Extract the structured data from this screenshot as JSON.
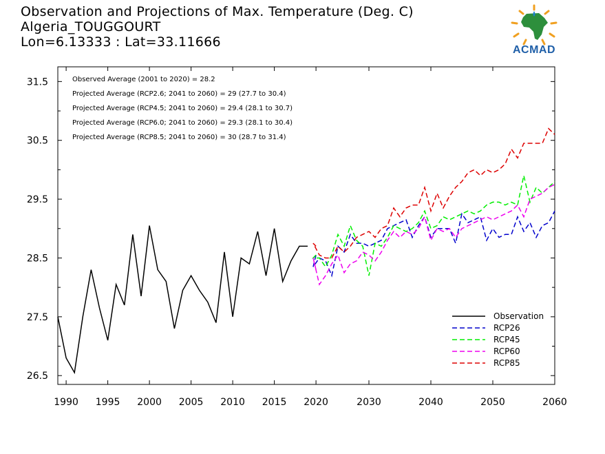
{
  "header": {
    "title_line1": "Observation and Projections of Max. Temperature (Deg. C)",
    "title_line2": "Algeria_TOUGGOURT",
    "title_line3": "Lon=6.13333 : Lat=33.11666"
  },
  "logo": {
    "text": "ACMAD",
    "icon": "africa-map-logo-icon"
  },
  "colors": {
    "observation": "#000000",
    "rcp26": "#0000cc",
    "rcp45": "#00ee00",
    "rcp60": "#ee00ee",
    "rcp85": "#dd0000"
  },
  "chart_data": {
    "type": "line",
    "xlim": [
      1989,
      2060
    ],
    "ylim": [
      26.35,
      31.75
    ],
    "x_ticks": [
      1990,
      1995,
      2000,
      2005,
      2010,
      2015,
      2020,
      2030,
      2040,
      2050,
      2060
    ],
    "x_tick_labels": [
      "1990",
      "1995",
      "2000",
      "2005",
      "2010",
      "2015",
      "2020",
      "2030",
      "2040",
      "2050",
      "2060"
    ],
    "y_ticks": [
      26.5,
      27.5,
      28.5,
      29.5,
      30.5,
      31.5
    ],
    "y_tick_labels": [
      "26.5",
      "27.5",
      "28.5",
      "29.5",
      "30.5",
      "31.5"
    ],
    "annotations": [
      "Observed Average (2001 to 2020) = 28.2",
      "Projected Average (RCP2.6; 2041 to 2060) = 29 (27.7 to 30.4)",
      "Projected Average (RCP4.5; 2041 to 2060) = 29.4 (28.1 to 30.7)",
      "Projected Average (RCP6.0; 2041 to 2060) = 29.3 (28.1 to 30.4)",
      "Projected Average (RCP8.5; 2041 to 2060) = 30 (28.7 to 31.4)"
    ],
    "legend": {
      "position": "bottom-right",
      "entries": [
        "Observation",
        "RCP26",
        "RCP45",
        "RCP60",
        "RCP85"
      ]
    },
    "series": [
      {
        "name": "Observation",
        "style": "solid",
        "x": [
          1989,
          1990,
          1991,
          1992,
          1993,
          1994,
          1995,
          1996,
          1997,
          1998,
          1999,
          2000,
          2001,
          2002,
          2003,
          2004,
          2005,
          2006,
          2007,
          2008,
          2009,
          2010,
          2011,
          2012,
          2013,
          2014,
          2015,
          2016,
          2017,
          2018,
          2019
        ],
        "y": [
          27.5,
          26.8,
          26.55,
          27.5,
          28.3,
          27.65,
          27.1,
          28.05,
          27.7,
          28.9,
          27.85,
          29.05,
          28.3,
          28.1,
          27.3,
          27.95,
          28.2,
          27.95,
          27.75,
          27.4,
          28.6,
          27.5,
          28.5,
          28.4,
          28.95,
          28.2,
          29.0,
          28.1,
          28.45,
          28.7,
          28.7
        ]
      },
      {
        "name": "RCP26",
        "style": "dashed",
        "x": [
          2020,
          2021,
          2022,
          2023,
          2024,
          2025,
          2026,
          2027,
          2028,
          2029,
          2030,
          2031,
          2032,
          2033,
          2034,
          2035,
          2036,
          2037,
          2038,
          2039,
          2040,
          2041,
          2042,
          2043,
          2044,
          2045,
          2046,
          2047,
          2048,
          2049,
          2050,
          2051,
          2052,
          2053,
          2054,
          2055,
          2056,
          2057,
          2058,
          2059,
          2060
        ],
        "y": [
          28.55,
          28.35,
          28.5,
          28.45,
          28.2,
          28.7,
          28.6,
          28.9,
          28.75,
          28.75,
          28.7,
          28.75,
          28.8,
          29.0,
          29.05,
          29.1,
          29.15,
          28.85,
          29.05,
          29.2,
          28.85,
          29.0,
          29.0,
          29.0,
          28.75,
          29.25,
          29.1,
          29.15,
          29.2,
          28.8,
          29.0,
          28.85,
          28.9,
          28.9,
          29.2,
          28.95,
          29.1,
          28.85,
          29.05,
          29.1,
          29.3
        ]
      },
      {
        "name": "RCP45",
        "style": "dashed",
        "x": [
          2020,
          2021,
          2022,
          2023,
          2024,
          2025,
          2026,
          2027,
          2028,
          2029,
          2030,
          2031,
          2032,
          2033,
          2034,
          2035,
          2036,
          2037,
          2038,
          2039,
          2040,
          2041,
          2042,
          2043,
          2044,
          2045,
          2046,
          2047,
          2048,
          2049,
          2050,
          2051,
          2052,
          2053,
          2054,
          2055,
          2056,
          2057,
          2058,
          2059,
          2060
        ],
        "y": [
          28.55,
          28.5,
          28.5,
          28.35,
          28.55,
          28.9,
          28.7,
          29.05,
          28.8,
          28.7,
          28.2,
          28.75,
          28.7,
          28.85,
          29.05,
          29.0,
          28.95,
          29.0,
          29.1,
          29.3,
          29.0,
          29.05,
          29.2,
          29.15,
          29.2,
          29.25,
          29.3,
          29.25,
          29.3,
          29.4,
          29.45,
          29.45,
          29.4,
          29.45,
          29.4,
          29.9,
          29.45,
          29.7,
          29.6,
          29.7,
          29.8
        ]
      },
      {
        "name": "RCP60",
        "style": "dashed",
        "x": [
          2020,
          2021,
          2022,
          2023,
          2024,
          2025,
          2026,
          2027,
          2028,
          2029,
          2030,
          2031,
          2032,
          2033,
          2034,
          2035,
          2036,
          2037,
          2038,
          2039,
          2040,
          2041,
          2042,
          2043,
          2044,
          2045,
          2046,
          2047,
          2048,
          2049,
          2050,
          2051,
          2052,
          2053,
          2054,
          2055,
          2056,
          2057,
          2058,
          2059,
          2060
        ],
        "y": [
          28.3,
          28.5,
          28.05,
          28.2,
          28.4,
          28.55,
          28.25,
          28.4,
          28.45,
          28.6,
          28.55,
          28.45,
          28.6,
          28.8,
          28.95,
          28.85,
          28.95,
          28.9,
          29.0,
          29.2,
          28.8,
          29.0,
          28.95,
          29.0,
          28.85,
          29.0,
          29.05,
          29.1,
          29.15,
          29.2,
          29.15,
          29.2,
          29.25,
          29.3,
          29.4,
          29.2,
          29.5,
          29.55,
          29.6,
          29.7,
          29.75
        ]
      },
      {
        "name": "RCP85",
        "style": "dashed",
        "x": [
          2020,
          2021,
          2022,
          2023,
          2024,
          2025,
          2026,
          2027,
          2028,
          2029,
          2030,
          2031,
          2032,
          2033,
          2034,
          2035,
          2036,
          2037,
          2038,
          2039,
          2040,
          2041,
          2042,
          2043,
          2044,
          2045,
          2046,
          2047,
          2048,
          2049,
          2050,
          2051,
          2052,
          2053,
          2054,
          2055,
          2056,
          2057,
          2058,
          2059,
          2060
        ],
        "y": [
          28.7,
          28.75,
          28.55,
          28.5,
          28.5,
          28.7,
          28.6,
          28.7,
          28.85,
          28.9,
          28.95,
          28.85,
          29.0,
          29.05,
          29.35,
          29.2,
          29.35,
          29.4,
          29.4,
          29.7,
          29.3,
          29.6,
          29.35,
          29.55,
          29.7,
          29.8,
          29.95,
          30.0,
          29.9,
          30.0,
          29.95,
          30.0,
          30.1,
          30.35,
          30.2,
          30.45,
          30.45,
          30.45,
          30.45,
          30.7,
          30.6
        ]
      }
    ]
  }
}
